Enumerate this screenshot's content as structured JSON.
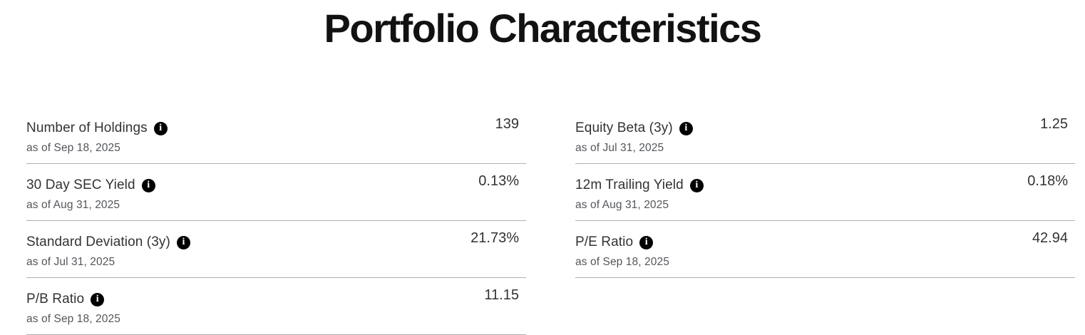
{
  "page": {
    "title": "Portfolio Characteristics"
  },
  "icons": {
    "info_glyph": "i"
  },
  "colors": {
    "title_text": "#121212",
    "label_text": "#333333",
    "as_of_text": "#53565a",
    "value_text": "#333333",
    "divider": "#b0b0b0",
    "info_icon_bg": "#000000",
    "info_icon_glyph": "#ffffff",
    "background": "#ffffff"
  },
  "columns": [
    {
      "rows": [
        {
          "label": "Number of Holdings",
          "as_of": "as of Sep 18, 2025",
          "value": "139"
        },
        {
          "label": "30 Day SEC Yield",
          "as_of": "as of Aug 31, 2025",
          "value": "0.13%"
        },
        {
          "label": "Standard Deviation (3y)",
          "as_of": "as of Jul 31, 2025",
          "value": "21.73%"
        },
        {
          "label": "P/B Ratio",
          "as_of": "as of Sep 18, 2025",
          "value": "11.15"
        }
      ]
    },
    {
      "rows": [
        {
          "label": "Equity Beta (3y)",
          "as_of": "as of Jul 31, 2025",
          "value": "1.25"
        },
        {
          "label": "12m Trailing Yield",
          "as_of": "as of Aug 31, 2025",
          "value": "0.18%"
        },
        {
          "label": "P/E Ratio",
          "as_of": "as of Sep 18, 2025",
          "value": "42.94"
        }
      ]
    }
  ]
}
